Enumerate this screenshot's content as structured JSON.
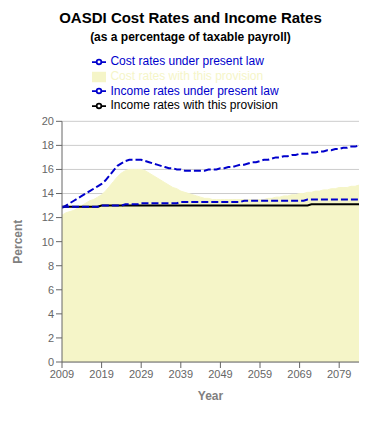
{
  "chart_data": {
    "type": "line",
    "title": "OASDI Cost Rates and Income Rates",
    "subtitle": "(as a percentage of taxable payroll)",
    "xlabel": "Year",
    "ylabel": "Percent",
    "xlim": [
      2009,
      2084
    ],
    "ylim": [
      0,
      20
    ],
    "xticks": [
      2009,
      2019,
      2029,
      2039,
      2049,
      2059,
      2069,
      2079
    ],
    "yticks": [
      0,
      2,
      4,
      6,
      8,
      10,
      12,
      14,
      16,
      18,
      20
    ],
    "grid": "y",
    "legend": "top",
    "x": [
      2009,
      2010,
      2011,
      2012,
      2013,
      2014,
      2015,
      2016,
      2017,
      2018,
      2019,
      2020,
      2021,
      2022,
      2023,
      2024,
      2025,
      2026,
      2027,
      2028,
      2029,
      2030,
      2031,
      2032,
      2033,
      2034,
      2035,
      2036,
      2037,
      2038,
      2039,
      2040,
      2041,
      2042,
      2043,
      2044,
      2045,
      2046,
      2047,
      2048,
      2049,
      2050,
      2051,
      2052,
      2053,
      2054,
      2055,
      2056,
      2057,
      2058,
      2059,
      2060,
      2061,
      2062,
      2063,
      2064,
      2065,
      2066,
      2067,
      2068,
      2069,
      2070,
      2071,
      2072,
      2073,
      2074,
      2075,
      2076,
      2077,
      2078,
      2079,
      2080,
      2081,
      2082,
      2083,
      2084
    ],
    "series": [
      {
        "name": "Cost rates with this provision",
        "type": "area",
        "color": "#f5f5c8",
        "line_style": "solid",
        "values": [
          12.2,
          12.4,
          12.5,
          12.6,
          12.8,
          13.0,
          13.2,
          13.4,
          13.5,
          13.7,
          13.9,
          14.2,
          14.6,
          15.0,
          15.4,
          15.7,
          15.9,
          16.0,
          16.0,
          16.0,
          16.0,
          15.9,
          15.7,
          15.5,
          15.3,
          15.1,
          14.9,
          14.7,
          14.5,
          14.4,
          14.2,
          14.1,
          14.0,
          13.9,
          13.8,
          13.7,
          13.6,
          13.6,
          13.5,
          13.5,
          13.5,
          13.5,
          13.5,
          13.5,
          13.5,
          13.5,
          13.5,
          13.5,
          13.5,
          13.5,
          13.5,
          13.5,
          13.6,
          13.6,
          13.7,
          13.7,
          13.8,
          13.8,
          13.9,
          13.9,
          14.0,
          14.0,
          14.1,
          14.1,
          14.2,
          14.2,
          14.3,
          14.3,
          14.4,
          14.4,
          14.5,
          14.5,
          14.5,
          14.6,
          14.6,
          14.7
        ]
      },
      {
        "name": "Cost rates under present law",
        "type": "line",
        "color": "#0000cc",
        "line_style": "dashed",
        "values": [
          12.8,
          13.0,
          13.2,
          13.4,
          13.6,
          13.8,
          14.0,
          14.2,
          14.4,
          14.6,
          14.8,
          15.1,
          15.5,
          15.9,
          16.3,
          16.5,
          16.7,
          16.8,
          16.8,
          16.8,
          16.8,
          16.7,
          16.6,
          16.5,
          16.4,
          16.3,
          16.2,
          16.1,
          16.1,
          16.0,
          16.0,
          15.9,
          15.9,
          15.9,
          15.9,
          15.9,
          15.9,
          16.0,
          16.0,
          16.0,
          16.1,
          16.1,
          16.2,
          16.2,
          16.3,
          16.4,
          16.4,
          16.5,
          16.6,
          16.6,
          16.7,
          16.8,
          16.8,
          16.9,
          17.0,
          17.0,
          17.1,
          17.1,
          17.2,
          17.2,
          17.3,
          17.3,
          17.3,
          17.4,
          17.4,
          17.5,
          17.5,
          17.6,
          17.6,
          17.7,
          17.7,
          17.8,
          17.8,
          17.9,
          17.9,
          18.0
        ]
      },
      {
        "name": "Income rates with this provision",
        "type": "line",
        "color": "#000000",
        "line_style": "solid",
        "values": [
          12.9,
          12.9,
          12.9,
          12.9,
          12.9,
          12.9,
          12.9,
          12.9,
          12.9,
          12.9,
          13.0,
          13.0,
          13.0,
          13.0,
          13.0,
          13.0,
          13.0,
          13.0,
          13.0,
          13.0,
          13.0,
          13.0,
          13.0,
          13.0,
          13.0,
          13.0,
          13.0,
          13.0,
          13.0,
          13.0,
          13.0,
          13.0,
          13.0,
          13.0,
          13.0,
          13.0,
          13.0,
          13.0,
          13.0,
          13.0,
          13.0,
          13.0,
          13.0,
          13.0,
          13.0,
          13.0,
          13.0,
          13.0,
          13.0,
          13.0,
          13.0,
          13.0,
          13.0,
          13.0,
          13.0,
          13.0,
          13.0,
          13.0,
          13.0,
          13.0,
          13.0,
          13.0,
          13.0,
          13.1,
          13.1,
          13.1,
          13.1,
          13.1,
          13.1,
          13.1,
          13.1,
          13.1,
          13.1,
          13.1,
          13.1,
          13.1
        ]
      },
      {
        "name": "Income rates under present law",
        "type": "line",
        "color": "#0000cc",
        "line_style": "dashed",
        "values": [
          12.9,
          12.9,
          12.9,
          12.9,
          12.9,
          12.9,
          12.9,
          12.9,
          12.9,
          12.9,
          13.0,
          13.0,
          13.0,
          13.0,
          13.0,
          13.0,
          13.1,
          13.1,
          13.1,
          13.1,
          13.2,
          13.2,
          13.2,
          13.2,
          13.2,
          13.2,
          13.2,
          13.2,
          13.2,
          13.2,
          13.3,
          13.3,
          13.3,
          13.3,
          13.3,
          13.3,
          13.3,
          13.3,
          13.3,
          13.3,
          13.3,
          13.3,
          13.3,
          13.3,
          13.3,
          13.3,
          13.4,
          13.4,
          13.4,
          13.4,
          13.4,
          13.4,
          13.4,
          13.4,
          13.4,
          13.4,
          13.4,
          13.4,
          13.4,
          13.4,
          13.4,
          13.4,
          13.5,
          13.5,
          13.5,
          13.5,
          13.5,
          13.5,
          13.5,
          13.5,
          13.5,
          13.5,
          13.5,
          13.5,
          13.5,
          13.5
        ]
      }
    ]
  }
}
